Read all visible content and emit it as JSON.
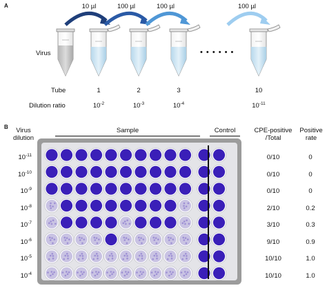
{
  "panel_a": {
    "label": "A",
    "transfers": [
      "10 µl",
      "100 µl",
      "100 µl",
      "100 µl"
    ],
    "virus_label": "Virus",
    "ellipsis": "• • • • • •",
    "row_tube": "Tube",
    "row_dilution": "Dilution ratio",
    "tubes": [
      {
        "num": "1",
        "ratio_base": "10",
        "ratio_exp": "-2"
      },
      {
        "num": "2",
        "ratio_base": "10",
        "ratio_exp": "-3"
      },
      {
        "num": "3",
        "ratio_base": "10",
        "ratio_exp": "-4"
      },
      {
        "num": "10",
        "ratio_base": "10",
        "ratio_exp": "-11"
      }
    ]
  },
  "panel_b": {
    "label": "B",
    "virus_dilution": [
      "Virus",
      "dilution"
    ],
    "sample": "Sample",
    "control": "Control",
    "cpe_header": [
      "CPE-positive",
      "/Total"
    ],
    "rate_header": [
      "Positive",
      "rate"
    ],
    "rows": [
      {
        "base": "10",
        "exp": "-11",
        "cpe": "0/10",
        "rate": "0"
      },
      {
        "base": "10",
        "exp": "-10",
        "cpe": "0/10",
        "rate": "0"
      },
      {
        "base": "10",
        "exp": "-9",
        "cpe": "0/10",
        "rate": "0"
      },
      {
        "base": "10",
        "exp": "-8",
        "cpe": "2/10",
        "rate": "0.2"
      },
      {
        "base": "10",
        "exp": "-7",
        "cpe": "3/10",
        "rate": "0.3"
      },
      {
        "base": "10",
        "exp": "-6",
        "cpe": "9/10",
        "rate": "0.9"
      },
      {
        "base": "10",
        "exp": "-5",
        "cpe": "10/10",
        "rate": "1.0"
      },
      {
        "base": "10",
        "exp": "-4",
        "cpe": "10/10",
        "rate": "1.0"
      }
    ]
  },
  "colors": {
    "well_purple": "#3a1fb8",
    "well_pale": "#c9c3e3",
    "arrow_dark": "#1f3f7a",
    "arrow_light": "#9ecdf0",
    "liquid": "#cfe6f3"
  }
}
